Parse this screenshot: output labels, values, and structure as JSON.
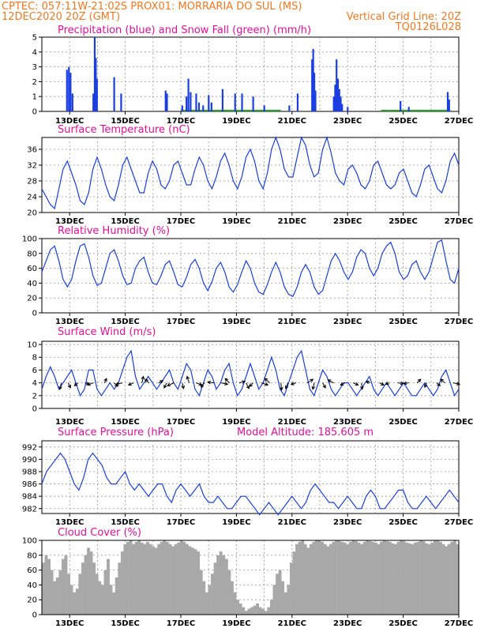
{
  "header": {
    "line1_left": "CPTEC:   057:11W-21:02S   PROX01: MORRARIA DO SUL (MS)",
    "line2_left": "12DEC2020 20Z (GMT)",
    "line2_right": "Vertical Grid Line: 20Z",
    "line3_right": "TQ0126L028"
  },
  "colors": {
    "header": "#f07820",
    "title": "#e0109a",
    "line": "#1a3ee0",
    "precip": "#1a3ee0",
    "snow": "#2aa02a",
    "cloud": "#a8a8a8",
    "arrow": "#000000"
  },
  "chart_data": [
    {
      "type": "bar",
      "title": "Precipitation (blue) and Snow Fall (green) (mm/h)",
      "x_labels": [
        "13DEC",
        "15DEC",
        "17DEC",
        "19DEC",
        "21DEC",
        "23DEC",
        "25DEC",
        "27DEC"
      ],
      "ylim": [
        0,
        5
      ],
      "yticks": [
        0,
        1,
        2,
        3,
        4,
        5
      ],
      "grid": true,
      "series": [
        {
          "points": [
            [
              0.9,
              2.8
            ],
            [
              0.97,
              3.0
            ],
            [
              1.03,
              2.6
            ],
            [
              1.1,
              1.2
            ],
            [
              1.85,
              1.2
            ],
            [
              1.9,
              5.0
            ],
            [
              1.94,
              3.6
            ],
            [
              1.98,
              2.2
            ],
            [
              2.6,
              2.3
            ],
            [
              2.85,
              1.2
            ],
            [
              4.45,
              1.4
            ],
            [
              4.5,
              1.2
            ],
            [
              5.05,
              0.4
            ],
            [
              5.2,
              1.0
            ],
            [
              5.27,
              2.2
            ],
            [
              5.35,
              1.3
            ],
            [
              5.55,
              1.2
            ],
            [
              5.65,
              0.6
            ],
            [
              5.8,
              0.4
            ],
            [
              6.0,
              1.1
            ],
            [
              6.1,
              0.6
            ],
            [
              6.5,
              1.5
            ],
            [
              6.95,
              1.2
            ],
            [
              7.2,
              1.2
            ],
            [
              7.6,
              1.0
            ],
            [
              8.0,
              0.4
            ],
            [
              8.9,
              0.4
            ],
            [
              9.2,
              1.2
            ],
            [
              9.72,
              3.5
            ],
            [
              9.76,
              4.2
            ],
            [
              9.8,
              2.6
            ],
            [
              9.84,
              1.4
            ],
            [
              10.5,
              1.0
            ],
            [
              10.55,
              1.8
            ],
            [
              10.6,
              3.5
            ],
            [
              10.65,
              2.2
            ],
            [
              10.7,
              1.5
            ],
            [
              10.75,
              1.0
            ],
            [
              10.8,
              0.5
            ],
            [
              11.0,
              0.3
            ],
            [
              12.9,
              0.7
            ],
            [
              13.2,
              0.3
            ],
            [
              14.6,
              1.3
            ],
            [
              14.65,
              0.8
            ]
          ]
        },
        {
          "name": "snow",
          "segments": [
            [
              5.0,
              8.6
            ],
            [
              12.2,
              14.7
            ]
          ],
          "value": 0.05
        }
      ]
    },
    {
      "type": "line",
      "title": "Surface Temperature (nC)",
      "x_labels": [
        "13DEC",
        "15DEC",
        "17DEC",
        "19DEC",
        "21DEC",
        "23DEC",
        "25DEC",
        "27DEC"
      ],
      "ylim": [
        20,
        39
      ],
      "yticks": [
        20,
        24,
        28,
        32,
        36
      ],
      "grid": true,
      "y": [
        26,
        24,
        22,
        21,
        26,
        31,
        33,
        30,
        27,
        23,
        22,
        25,
        31,
        34,
        31,
        27,
        24,
        23,
        27,
        32,
        34,
        31,
        28,
        25,
        25,
        30,
        33,
        31,
        27,
        26,
        28,
        32,
        33,
        30,
        27,
        27,
        31,
        34,
        32,
        28,
        26,
        29,
        33,
        35,
        32,
        28,
        26,
        29,
        34,
        36,
        33,
        28,
        26,
        30,
        36,
        39,
        36,
        31,
        29,
        29,
        34,
        39,
        37,
        32,
        29,
        30,
        36,
        39,
        35,
        30,
        28,
        27,
        31,
        32,
        30,
        27,
        26,
        28,
        32,
        33,
        30,
        27,
        26,
        27,
        30,
        31,
        28,
        25,
        24,
        27,
        31,
        32,
        29,
        26,
        25,
        28,
        33,
        35,
        32
      ]
    },
    {
      "type": "line",
      "title": "Relative Humidity (%)",
      "x_labels": [
        "13DEC",
        "15DEC",
        "17DEC",
        "19DEC",
        "21DEC",
        "23DEC",
        "25DEC",
        "27DEC"
      ],
      "ylim": [
        0,
        100
      ],
      "yticks": [
        0,
        20,
        40,
        60,
        80,
        100
      ],
      "grid": true,
      "y": [
        55,
        70,
        85,
        90,
        70,
        45,
        35,
        45,
        70,
        90,
        93,
        75,
        50,
        37,
        40,
        60,
        80,
        85,
        70,
        50,
        38,
        40,
        60,
        70,
        75,
        55,
        40,
        38,
        50,
        65,
        70,
        55,
        38,
        35,
        48,
        65,
        72,
        60,
        40,
        30,
        42,
        60,
        68,
        55,
        35,
        28,
        38,
        55,
        70,
        60,
        40,
        28,
        25,
        38,
        55,
        68,
        55,
        35,
        25,
        22,
        35,
        55,
        65,
        55,
        35,
        25,
        30,
        50,
        70,
        80,
        70,
        55,
        45,
        55,
        75,
        85,
        80,
        60,
        50,
        60,
        80,
        90,
        95,
        80,
        55,
        45,
        50,
        65,
        70,
        55,
        45,
        55,
        75,
        95,
        98,
        70,
        45,
        40,
        60
      ]
    },
    {
      "type": "line",
      "title": "Surface Wind (m/s)",
      "x_labels": [
        "13DEC",
        "15DEC",
        "17DEC",
        "19DEC",
        "21DEC",
        "23DEC",
        "25DEC",
        "27DEC"
      ],
      "ylim": [
        0,
        10.5
      ],
      "yticks": [
        0,
        2,
        4,
        6,
        8,
        10
      ],
      "grid": true,
      "y": [
        3,
        5,
        6.5,
        5,
        3,
        4,
        5,
        6,
        4,
        2,
        3,
        6,
        6,
        3,
        2,
        3,
        4,
        3,
        4,
        6,
        8,
        9,
        5,
        3,
        4,
        5,
        4,
        3,
        4,
        5,
        6,
        4,
        3,
        5,
        7,
        6,
        3,
        2,
        4,
        6,
        5,
        3,
        4,
        6,
        7,
        4,
        2,
        3,
        5,
        7,
        5,
        3,
        4,
        6,
        8,
        6,
        3,
        2,
        4,
        6,
        8,
        9,
        6,
        3,
        2,
        4,
        6,
        5,
        3,
        2,
        3,
        4,
        4,
        3,
        2,
        3,
        4,
        5,
        3,
        2,
        3,
        4,
        3,
        2,
        3,
        4,
        3,
        2,
        2,
        3,
        4,
        3,
        2,
        3,
        5,
        6,
        4,
        2,
        3
      ],
      "arrows": [
        [
          0.7,
          4
        ],
        [
          0.95,
          4
        ],
        [
          1.3,
          4
        ],
        [
          1.55,
          4
        ],
        [
          1.85,
          4
        ],
        [
          2.25,
          4
        ],
        [
          2.6,
          4
        ],
        [
          2.9,
          4
        ],
        [
          3.3,
          4
        ],
        [
          3.6,
          4
        ],
        [
          3.85,
          4
        ],
        [
          4.2,
          4
        ],
        [
          4.5,
          4
        ],
        [
          4.75,
          4
        ],
        [
          5.05,
          4
        ],
        [
          5.3,
          4
        ],
        [
          5.55,
          4
        ],
        [
          5.85,
          4
        ],
        [
          6.2,
          4
        ],
        [
          6.45,
          4
        ],
        [
          6.75,
          4
        ],
        [
          7.1,
          4
        ],
        [
          7.35,
          4
        ],
        [
          7.6,
          4
        ],
        [
          7.9,
          4
        ],
        [
          8.2,
          4
        ],
        [
          8.6,
          4
        ],
        [
          8.85,
          4
        ],
        [
          9.15,
          4
        ],
        [
          9.55,
          4
        ],
        [
          9.8,
          4
        ],
        [
          10.1,
          4
        ],
        [
          10.5,
          4
        ],
        [
          10.9,
          4
        ],
        [
          11.2,
          4
        ],
        [
          11.5,
          4
        ],
        [
          11.8,
          4
        ],
        [
          12.15,
          4
        ],
        [
          12.5,
          4
        ],
        [
          12.8,
          4
        ],
        [
          13.2,
          4
        ],
        [
          13.5,
          4
        ],
        [
          13.85,
          4
        ],
        [
          14.2,
          4
        ],
        [
          14.5,
          4
        ],
        [
          14.8,
          4
        ]
      ],
      "arrow_dirs": [
        [
          -0.2,
          0.9
        ],
        [
          0.3,
          0.7
        ],
        [
          -0.5,
          0.4
        ],
        [
          0.6,
          0.2
        ],
        [
          -0.8,
          0.3
        ],
        [
          0.3,
          -0.6
        ],
        [
          0.5,
          0.5
        ],
        [
          -0.9,
          0.2
        ],
        [
          -0.7,
          0.3
        ],
        [
          0.2,
          -0.9
        ],
        [
          -0.5,
          -0.5
        ],
        [
          0.6,
          -0.3
        ],
        [
          -0.4,
          0.7
        ],
        [
          -0.9,
          0.4
        ],
        [
          0.2,
          0.8
        ],
        [
          -0.3,
          -0.9
        ],
        [
          0.8,
          0.3
        ],
        [
          -0.5,
          0.6
        ],
        [
          -0.9,
          -0.1
        ],
        [
          0.9,
          0.2
        ],
        [
          -0.6,
          -0.6
        ],
        [
          0.8,
          -0.2
        ],
        [
          0.4,
          0.8
        ],
        [
          -0.5,
          0.5
        ],
        [
          0.9,
          0.3
        ],
        [
          -0.7,
          -0.6
        ],
        [
          0.1,
          1.0
        ],
        [
          -0.3,
          0.8
        ],
        [
          -0.7,
          0.2
        ],
        [
          0.8,
          -0.5
        ],
        [
          -0.2,
          0.9
        ],
        [
          0.4,
          0.7
        ],
        [
          -0.8,
          -0.4
        ],
        [
          -0.6,
          0.3
        ],
        [
          0.7,
          0.3
        ],
        [
          0.1,
          0.9
        ],
        [
          -0.5,
          -0.2
        ],
        [
          0.6,
          0.3
        ],
        [
          -0.5,
          0.2
        ],
        [
          0.8,
          0.1
        ],
        [
          -0.7,
          0.1
        ],
        [
          0.5,
          -0.5
        ],
        [
          -0.3,
          0.6
        ],
        [
          0.5,
          0.4
        ],
        [
          -0.6,
          -0.5
        ],
        [
          0.9,
          0.2
        ]
      ]
    },
    {
      "type": "line",
      "title": "Surface Pressure (hPa)",
      "subtitle": "Model Altitude: 185.605 m",
      "x_labels": [
        "13DEC",
        "15DEC",
        "17DEC",
        "19DEC",
        "21DEC",
        "23DEC",
        "25DEC",
        "27DEC"
      ],
      "ylim": [
        981.2,
        993
      ],
      "yticks": [
        982,
        984,
        986,
        988,
        990,
        992
      ],
      "grid": true,
      "y": [
        986,
        988,
        989,
        990,
        991,
        990,
        988,
        986,
        985,
        987,
        990,
        991,
        990,
        989,
        987,
        986,
        986,
        987,
        988,
        986,
        985,
        986,
        985,
        984,
        985,
        986,
        986,
        984,
        983,
        985,
        986,
        985,
        984,
        985,
        986,
        984,
        983,
        983,
        984,
        983,
        982,
        982,
        983,
        984,
        984,
        983,
        982,
        981,
        982,
        983,
        982,
        981,
        982,
        983,
        984,
        983,
        982,
        983,
        985,
        986,
        985,
        984,
        983,
        983,
        982,
        983,
        984,
        983,
        982,
        982,
        984,
        985,
        984,
        982,
        982,
        983,
        984,
        985,
        985,
        983,
        982,
        982,
        983,
        984,
        983,
        982,
        983,
        984,
        985,
        984,
        983
      ]
    },
    {
      "type": "bar",
      "title": "Cloud Cover (%)",
      "x_labels": [
        "13DEC",
        "15DEC",
        "17DEC",
        "19DEC",
        "21DEC",
        "23DEC",
        "25DEC",
        "27DEC"
      ],
      "ylim": [
        0,
        100
      ],
      "yticks": [
        0,
        20,
        40,
        60,
        80,
        100
      ],
      "grid": true,
      "values": [
        70,
        80,
        75,
        60,
        45,
        50,
        60,
        75,
        80,
        55,
        40,
        30,
        35,
        55,
        70,
        80,
        90,
        85,
        70,
        55,
        45,
        40,
        60,
        75,
        40,
        30,
        50,
        70,
        85,
        95,
        98,
        100,
        95,
        98,
        100,
        97,
        95,
        98,
        95,
        92,
        90,
        95,
        98,
        100,
        98,
        95,
        92,
        95,
        97,
        100,
        98,
        95,
        92,
        90,
        88,
        85,
        60,
        45,
        30,
        40,
        55,
        70,
        80,
        85,
        80,
        75,
        60,
        45,
        30,
        20,
        15,
        10,
        5,
        8,
        10,
        12,
        15,
        10,
        8,
        5,
        10,
        20,
        40,
        55,
        60,
        45,
        30,
        40,
        70,
        85,
        95,
        98,
        100,
        95,
        90,
        95,
        98,
        100,
        100,
        98,
        95,
        92,
        95,
        98,
        100,
        100,
        98,
        97,
        95,
        98,
        100,
        99,
        97,
        95,
        98,
        100,
        99,
        98,
        97,
        95,
        98,
        100,
        99,
        98,
        96,
        95,
        98,
        100,
        99,
        97,
        96,
        95,
        97,
        98,
        100,
        99,
        96,
        95,
        97,
        100,
        100,
        98,
        95,
        92,
        95,
        98,
        100,
        95
      ]
    }
  ]
}
